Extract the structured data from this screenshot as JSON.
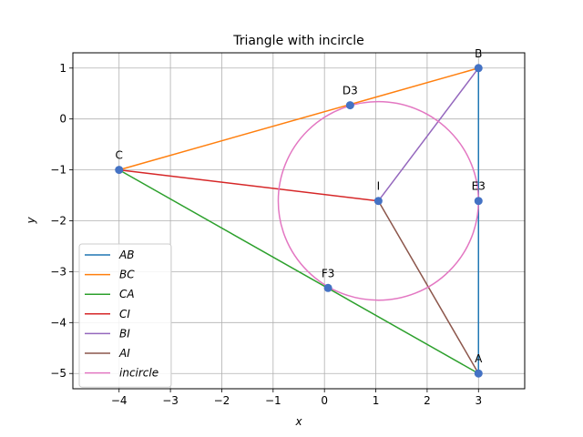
{
  "chart_data": {
    "type": "line",
    "title": "Triangle with incircle",
    "xlabel": "x",
    "ylabel": "y",
    "xlim": [
      -4.9,
      3.9
    ],
    "ylim": [
      -5.3,
      1.3
    ],
    "xticks": [
      -4,
      -3,
      -2,
      -1,
      0,
      1,
      2,
      3
    ],
    "yticks": [
      -5,
      -4,
      -3,
      -2,
      -1,
      0,
      1
    ],
    "grid": true,
    "legend_position": "lower-left",
    "points": [
      {
        "label": "A",
        "x": 3,
        "y": -5
      },
      {
        "label": "B",
        "x": 3,
        "y": 1
      },
      {
        "label": "C",
        "x": -4,
        "y": -1
      },
      {
        "label": "I",
        "x": 1.05,
        "y": -1.61
      },
      {
        "label": "D3",
        "x": 0.5,
        "y": 0.27
      },
      {
        "label": "E3",
        "x": 3,
        "y": -1.61
      },
      {
        "label": "F3",
        "x": 0.07,
        "y": -3.32
      }
    ],
    "series": [
      {
        "name": "AB",
        "color": "#1f77b4",
        "points": [
          [
            3,
            -5
          ],
          [
            3,
            1
          ]
        ]
      },
      {
        "name": "BC",
        "color": "#ff7f0e",
        "points": [
          [
            3,
            1
          ],
          [
            -4,
            -1
          ]
        ]
      },
      {
        "name": "CA",
        "color": "#2ca02c",
        "points": [
          [
            -4,
            -1
          ],
          [
            3,
            -5
          ]
        ]
      },
      {
        "name": "CI",
        "color": "#d62728",
        "points": [
          [
            -4,
            -1
          ],
          [
            1.05,
            -1.61
          ]
        ]
      },
      {
        "name": "BI",
        "color": "#9467bd",
        "points": [
          [
            3,
            1
          ],
          [
            1.05,
            -1.61
          ]
        ]
      },
      {
        "name": "AI",
        "color": "#8c564b",
        "points": [
          [
            3,
            -5
          ],
          [
            1.05,
            -1.61
          ]
        ]
      },
      {
        "name": "incircle",
        "color": "#e377c2",
        "circle": {
          "cx": 1.05,
          "cy": -1.61,
          "r": 1.95
        }
      }
    ],
    "point_color": "#4472c4"
  }
}
